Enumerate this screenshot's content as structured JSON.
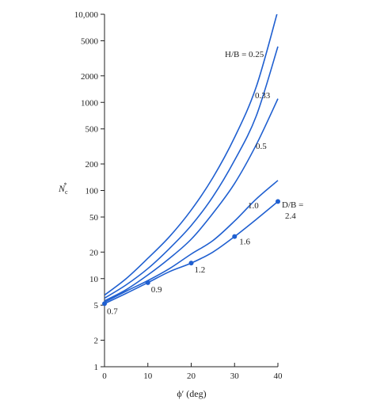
{
  "chart_data": {
    "type": "line",
    "xlabel": "ϕ′ (deg)",
    "ylabel": "N*c",
    "xlim": [
      0,
      40
    ],
    "ylim": [
      1,
      10000
    ],
    "yscale": "log",
    "xticks": [
      0,
      10,
      20,
      30,
      40
    ],
    "yticks": [
      1,
      2,
      5,
      10,
      20,
      50,
      100,
      200,
      500,
      1000,
      2000,
      5000,
      10000
    ],
    "ytick_labels": [
      "1",
      "2",
      "5",
      "10",
      "20",
      "50",
      "100",
      "200",
      "500",
      "1000",
      "2000",
      "5000",
      "10,000"
    ],
    "grid": false,
    "series": [
      {
        "name": "H/B = 0.25",
        "x": [
          0,
          5,
          10,
          15,
          20,
          25,
          30,
          35,
          40
        ],
        "y": [
          6.5,
          10,
          17,
          30,
          60,
          140,
          400,
          1500,
          11000
        ]
      },
      {
        "name": "0.33",
        "x": [
          0,
          5,
          10,
          15,
          20,
          25,
          30,
          35,
          40
        ],
        "y": [
          6.0,
          8.5,
          13,
          22,
          40,
          85,
          220,
          700,
          4300
        ]
      },
      {
        "name": "0.5",
        "x": [
          0,
          5,
          10,
          15,
          20,
          25,
          30,
          35,
          40
        ],
        "y": [
          5.6,
          7.5,
          11,
          17,
          28,
          55,
          120,
          330,
          1100
        ]
      },
      {
        "name": "1.0",
        "x": [
          0,
          5,
          10,
          15,
          20,
          25,
          30,
          35,
          40
        ],
        "y": [
          5.4,
          7.2,
          9.5,
          13,
          19,
          27,
          45,
          80,
          130
        ]
      },
      {
        "name": "D/B",
        "x": [
          0,
          5,
          10,
          15,
          20,
          25,
          30,
          35,
          40
        ],
        "y": [
          5.2,
          6.8,
          9,
          12,
          15,
          20,
          30,
          47,
          75
        ]
      }
    ],
    "points": [
      {
        "x": 0,
        "y": 5.2,
        "label": "0.7"
      },
      {
        "x": 10,
        "y": 9,
        "label": "0.9"
      },
      {
        "x": 20,
        "y": 15,
        "label": "1.2"
      },
      {
        "x": 30,
        "y": 30,
        "label": "1.6"
      },
      {
        "x": 40,
        "y": 75,
        "label": "2.4"
      }
    ],
    "annotations": {
      "hb_label": "H/B = 0.25",
      "db_label": "D/B =",
      "db_first": "2.4"
    }
  }
}
